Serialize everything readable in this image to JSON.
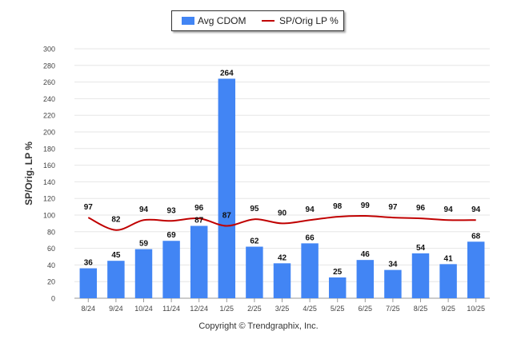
{
  "legend": {
    "bar_label": "Avg CDOM",
    "line_label": "SP/Orig LP %"
  },
  "footer": "Copyright © Trendgraphix, Inc.",
  "chart_data": {
    "type": "bar",
    "categories": [
      "8/24",
      "9/24",
      "10/24",
      "11/24",
      "12/24",
      "1/25",
      "2/25",
      "3/25",
      "4/25",
      "5/25",
      "6/25",
      "7/25",
      "8/25",
      "9/25",
      "10/25"
    ],
    "ylabel": "SP/Orig. LP %",
    "ylim": [
      0,
      300
    ],
    "yticks": [
      0,
      20,
      40,
      60,
      80,
      100,
      120,
      140,
      160,
      180,
      200,
      220,
      240,
      260,
      280,
      300
    ],
    "grid": true,
    "legend_position": "top-center",
    "series": [
      {
        "name": "Avg CDOM",
        "kind": "bar",
        "color": "#4285f4",
        "values": [
          36,
          45,
          59,
          69,
          87,
          264,
          62,
          42,
          66,
          25,
          46,
          34,
          54,
          41,
          68
        ]
      },
      {
        "name": "SP/Orig LP %",
        "kind": "line",
        "color": "#c00000",
        "values": [
          97,
          82,
          94,
          93,
          96,
          87,
          95,
          90,
          94,
          98,
          99,
          97,
          96,
          94,
          94
        ]
      }
    ]
  }
}
